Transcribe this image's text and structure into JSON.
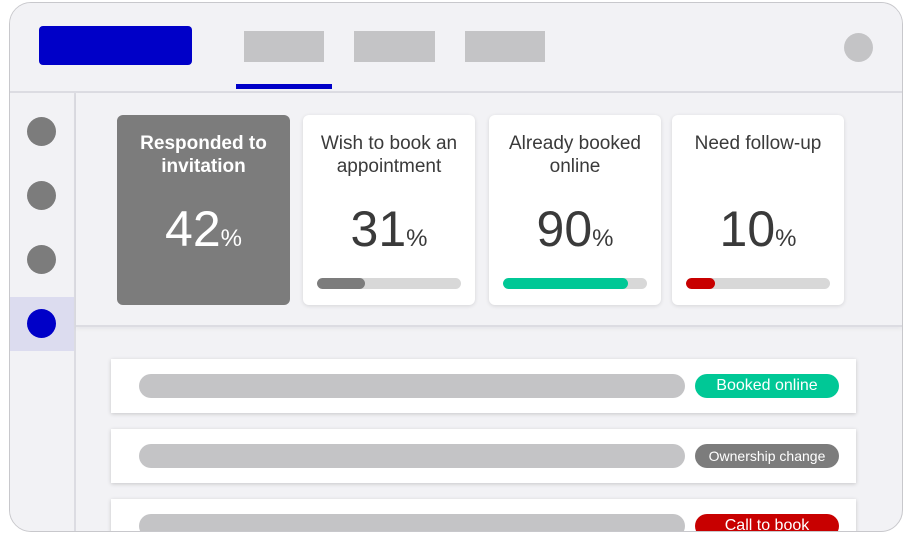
{
  "colors": {
    "brand": "#0000c8",
    "card_dark": "#7c7c7c",
    "progress_gray": "#7c7c7c",
    "progress_green": "#00c896",
    "progress_red": "#c80000",
    "badge_green": "#00c896",
    "badge_gray": "#7c7c7c",
    "badge_red": "#c80000"
  },
  "stats": [
    {
      "title": "Responded to invitation",
      "value": "42",
      "unit": "%",
      "progress": null
    },
    {
      "title": "Wish to book an appointment",
      "value": "31",
      "unit": "%",
      "progress": 0.33
    },
    {
      "title": "Already booked online",
      "value": "90",
      "unit": "%",
      "progress": 0.87
    },
    {
      "title": "Need follow-up",
      "value": "10",
      "unit": "%",
      "progress": 0.2
    }
  ],
  "rows": [
    {
      "status": "Booked online",
      "status_color": "#00c896"
    },
    {
      "status": "Ownership change",
      "status_color": "#7c7c7c"
    },
    {
      "status": "Call to book",
      "status_color": "#c80000"
    }
  ]
}
